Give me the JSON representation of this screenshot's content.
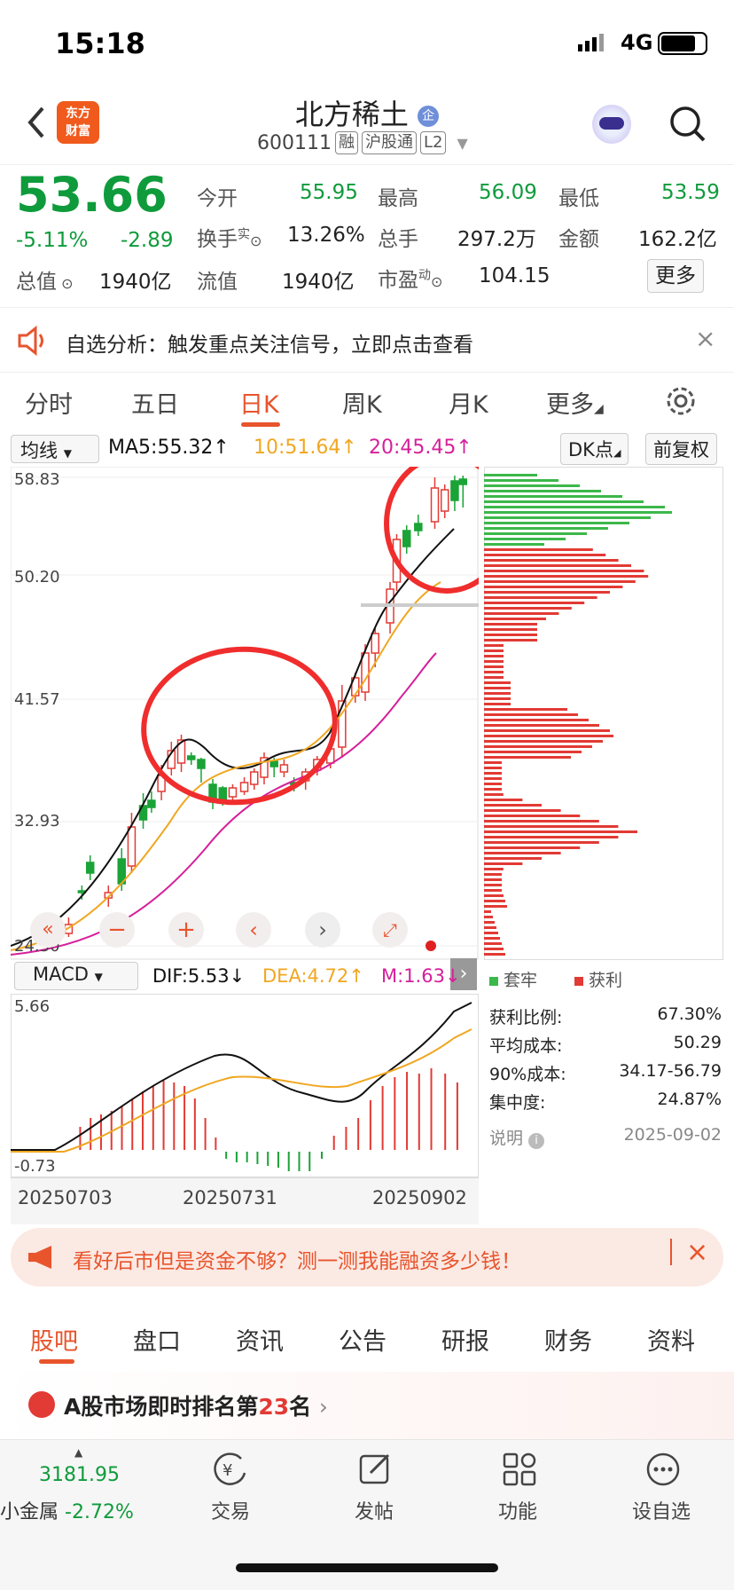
{
  "status": {
    "time": "15:18",
    "network": "4G"
  },
  "header": {
    "name": "北方稀土",
    "code": "600111",
    "tags": [
      "融",
      "沪股通",
      "L2"
    ],
    "logo_line1": "东方",
    "logo_line2": "财富",
    "badge": "企"
  },
  "quote": {
    "price": "53.66",
    "pct": "-5.11%",
    "chg": "-2.89",
    "open_label": "今开",
    "open": "55.95",
    "high_label": "最高",
    "high": "56.09",
    "low_label": "最低",
    "low": "53.59",
    "turnover_label": "换手",
    "turnover_sup": "实",
    "turnover": "13.26%",
    "vol_label": "总手",
    "vol": "297.2万",
    "amt_label": "金额",
    "amt": "162.2亿",
    "mcap_label": "总值",
    "mcap": "1940亿",
    "float_label": "流值",
    "float": "1940亿",
    "pe_label": "市盈",
    "pe_sup": "动",
    "pe": "104.15",
    "more": "更多"
  },
  "notice": {
    "text": "自选分析：触发重点关注信号，立即点击查看"
  },
  "tabs": [
    "分时",
    "五日",
    "日K",
    "周K",
    "月K",
    "更多"
  ],
  "ma_bar": {
    "select": "均线",
    "ma5": "MA5:55.32↑",
    "ma10": "10:51.64↑",
    "ma20": "20:45.45↑",
    "dk": "DK点",
    "fq": "前复权"
  },
  "price_axis": [
    "58.83",
    "50.20",
    "41.57",
    "32.93",
    "24.30"
  ],
  "macd_bar": {
    "select": "MACD",
    "dif": "DIF:5.53↓",
    "dea": "DEA:4.72↑",
    "m": "M:1.63↓"
  },
  "macd_axis": [
    "5.66",
    "-0.73"
  ],
  "dates": [
    "20250703",
    "20250731",
    "20250902"
  ],
  "chips": {
    "legend_a": "套牢",
    "legend_b": "获利",
    "rows": [
      {
        "k": "获利比例:",
        "v": "67.30%"
      },
      {
        "k": "平均成本:",
        "v": "50.29"
      },
      {
        "k": "90%成本:",
        "v": "34.17-56.79"
      },
      {
        "k": "集中度:",
        "v": "24.87%"
      }
    ],
    "note": "说明",
    "date": "2025-09-02"
  },
  "ad": {
    "text": "看好后市但是资金不够？测一测我能融资多少钱！"
  },
  "bottom_tabs": [
    "股吧",
    "盘口",
    "资讯",
    "公告",
    "研报",
    "财务",
    "资料"
  ],
  "rank": {
    "prefix": "A股市场即时排名第",
    "num": "23",
    "suffix": "名"
  },
  "nav": {
    "index_val": "3181.95",
    "index_name": "小金属",
    "index_pct": "-2.72%",
    "items": [
      "交易",
      "发帖",
      "功能",
      "设自选"
    ]
  },
  "chart_data": {
    "type": "candlestick",
    "ylim": [
      24.3,
      58.83
    ],
    "y_ticks": [
      "58.83",
      "50.20",
      "41.57",
      "32.93",
      "24.30"
    ],
    "x_ticks": [
      "20250703",
      "20250731",
      "20250902"
    ],
    "series": [
      {
        "name": "MA5",
        "last": 55.32
      },
      {
        "name": "MA10",
        "last": 51.64
      },
      {
        "name": "MA20",
        "last": 45.45
      }
    ],
    "macd": {
      "dif": 5.53,
      "dea": 4.72,
      "m": 1.63,
      "ylim": [
        -0.73,
        5.66
      ]
    }
  }
}
